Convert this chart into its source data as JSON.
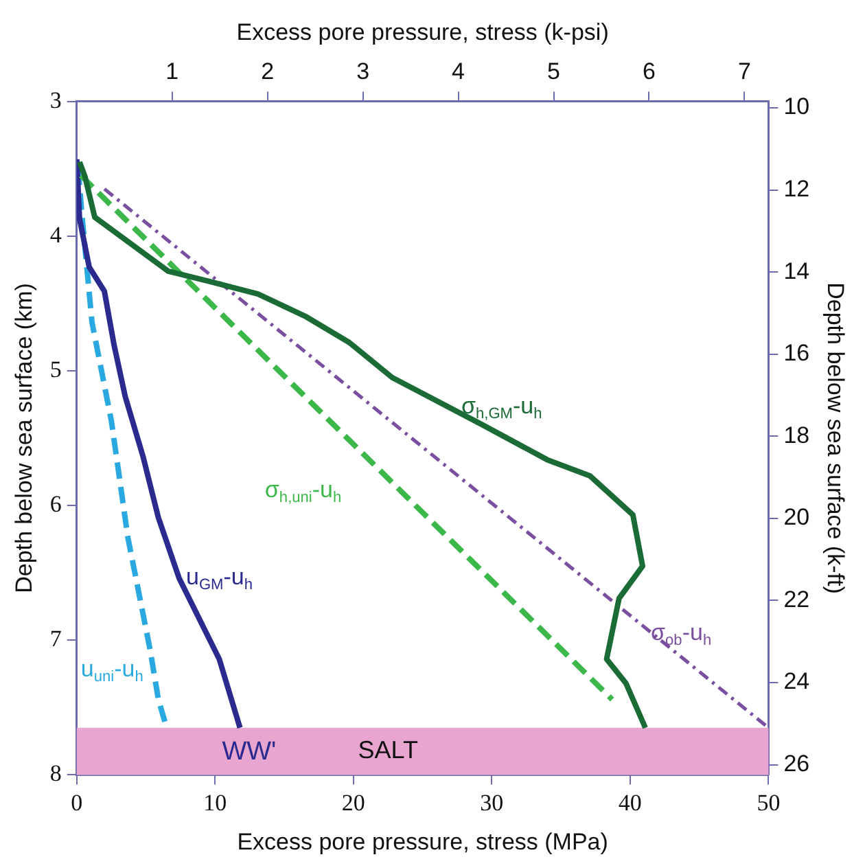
{
  "chart_data": {
    "type": "line",
    "xlabel": "Excess pore pressure, stress (MPa)",
    "x2label": "Excess pore pressure, stress (k-psi)",
    "ylabel": "Depth below sea surface (km)",
    "y2label": "Depth below sea surface (k-ft)",
    "xlim": [
      0,
      50
    ],
    "xticks": [
      0,
      10,
      20,
      30,
      40,
      50
    ],
    "x2lim": [
      0,
      7.2516
    ],
    "x2ticks": [
      1,
      2,
      3,
      4,
      5,
      6,
      7
    ],
    "ylim": [
      8,
      3
    ],
    "yticks": [
      3,
      4,
      5,
      6,
      7,
      8
    ],
    "y2lim": [
      26.247,
      9.843
    ],
    "y2ticks": [
      10,
      12,
      14,
      16,
      18,
      20,
      22,
      24,
      26
    ],
    "grid": false,
    "legend": false,
    "marker": "none",
    "series": [
      {
        "name": "σ$_{h,GM}$-u$_{h}$",
        "color": "#1a6b35",
        "line_style": "solid",
        "x": [
          0.2,
          0.6,
          1.3,
          6.6,
          9.7,
          13.1,
          16.6,
          19.7,
          22.8,
          29.3,
          34.0,
          37.1,
          40.2,
          40.9,
          39.2,
          38.3,
          39.7,
          41.1
        ],
        "values": [
          3.45,
          3.56,
          3.86,
          4.26,
          4.34,
          4.43,
          4.6,
          4.79,
          5.05,
          5.4,
          5.66,
          5.78,
          6.07,
          6.45,
          6.69,
          7.14,
          7.32,
          7.65
        ]
      },
      {
        "name": "σ$_{h,uni}$-u$_{h}$",
        "color": "#3cb84a",
        "line_style": "dashed",
        "x": [
          0.3,
          38.7
        ],
        "values": [
          3.55,
          7.44
        ]
      },
      {
        "name": "σ$_{ob}$-u$_{h}$",
        "color": "#7b4fa0",
        "line_style": "dashdot",
        "x": [
          2.0,
          50
        ],
        "values": [
          3.65,
          7.65
        ]
      },
      {
        "name": "u$_{GM}$-u$_{h}$",
        "color": "#2b2a8f",
        "line_style": "solid",
        "x": [
          0,
          0.2,
          0.9,
          2.0,
          2.7,
          3.5,
          4.8,
          5.9,
          7.4,
          10.3,
          11.8
        ],
        "values": [
          3.43,
          3.87,
          4.23,
          4.41,
          4.81,
          5.19,
          5.64,
          6.09,
          6.54,
          7.14,
          7.65
        ]
      },
      {
        "name": "u$_{uni}$-u$_{h}$",
        "color": "#2aa9e0",
        "line_style": "dashed",
        "x": [
          0.1,
          0.4,
          1.1,
          2.5,
          3.7,
          5.3,
          5.9,
          6.5
        ],
        "values": [
          3.5,
          3.87,
          4.64,
          5.37,
          6.24,
          7.07,
          7.44,
          7.65
        ]
      }
    ],
    "bands": [
      {
        "axis": "y",
        "from": 7.65,
        "to": 8,
        "label": "SALT",
        "color": "#e8a5d0"
      }
    ],
    "annotations": [
      "WW'"
    ]
  }
}
